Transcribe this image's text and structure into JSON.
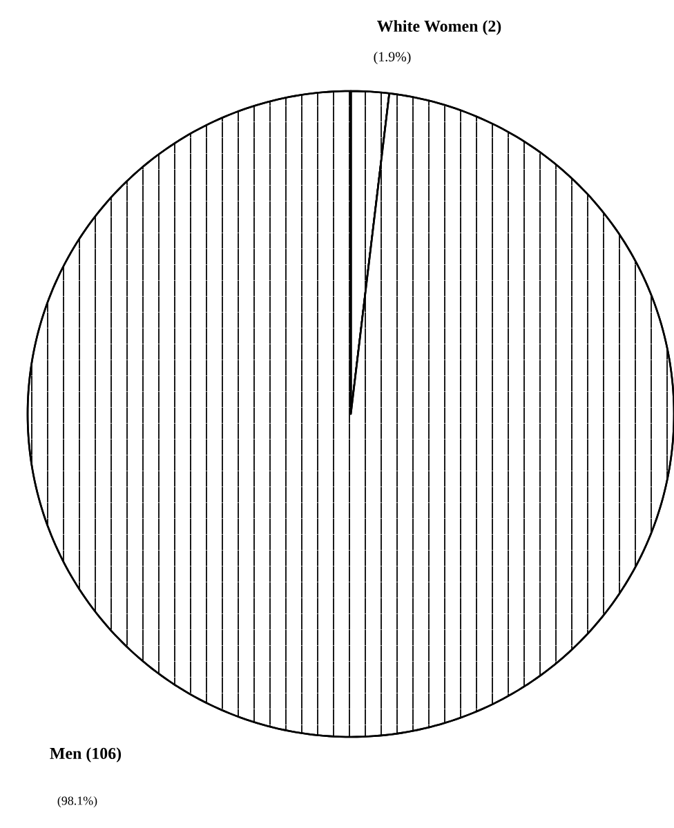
{
  "chart_data": {
    "type": "pie",
    "categories": [
      "White Women (2)",
      "Men (106)"
    ],
    "values": [
      1.9,
      98.1
    ],
    "value_labels": [
      "(1.9%)",
      "(98.1%)"
    ],
    "colors": [
      "#ffffff",
      "#ffffff"
    ]
  }
}
